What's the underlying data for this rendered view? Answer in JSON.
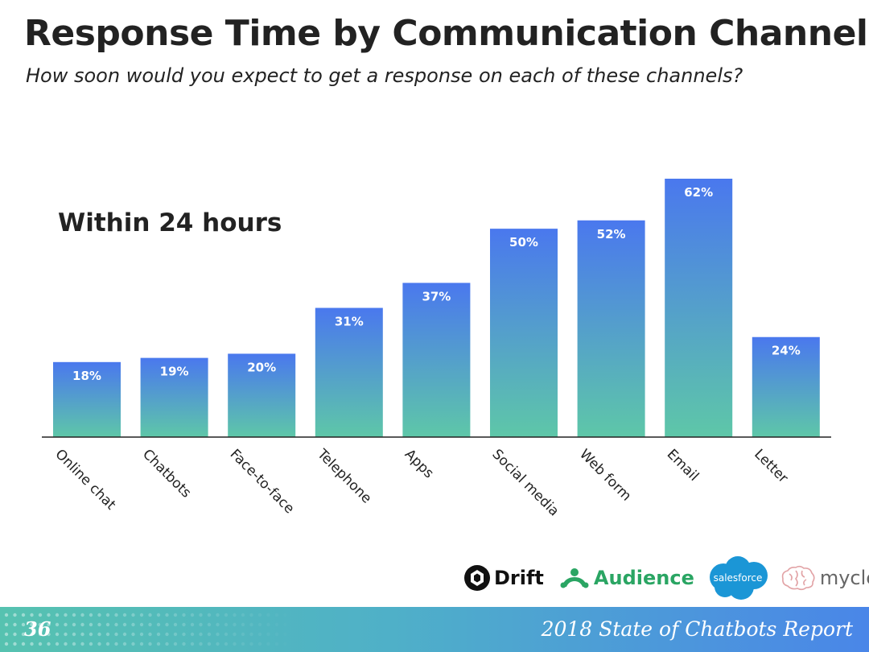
{
  "slide": {
    "title": "Response Time by Communication Channel",
    "subtitle": "How soon would you expect to get a response on each of these channels?",
    "page_number": "36",
    "report_title": "2018 State of Chatbots Report"
  },
  "logos": {
    "drift": "Drift",
    "audience": "Audience",
    "salesforce": "salesforce",
    "myclever": "myclever"
  },
  "colors": {
    "bar_top": "#4a78ee",
    "bar_bottom": "#5ec7a8",
    "axis": "#222222",
    "footer_left": "#56c2b0",
    "footer_right": "#4a86e8"
  },
  "chart_data": {
    "type": "bar",
    "annotation": "Within 24 hours",
    "categories": [
      "Online chat",
      "Chatbots",
      "Face-to-face",
      "Telephone",
      "Apps",
      "Social media",
      "Web form",
      "Email",
      "Letter"
    ],
    "values": [
      18,
      19,
      20,
      31,
      37,
      50,
      52,
      62,
      24
    ],
    "data_labels": [
      "18%",
      "19%",
      "20%",
      "31%",
      "37%",
      "50%",
      "52%",
      "62%",
      "24%"
    ],
    "unit": "%",
    "ylim": [
      0,
      62
    ],
    "grid": false,
    "legend": "none"
  }
}
